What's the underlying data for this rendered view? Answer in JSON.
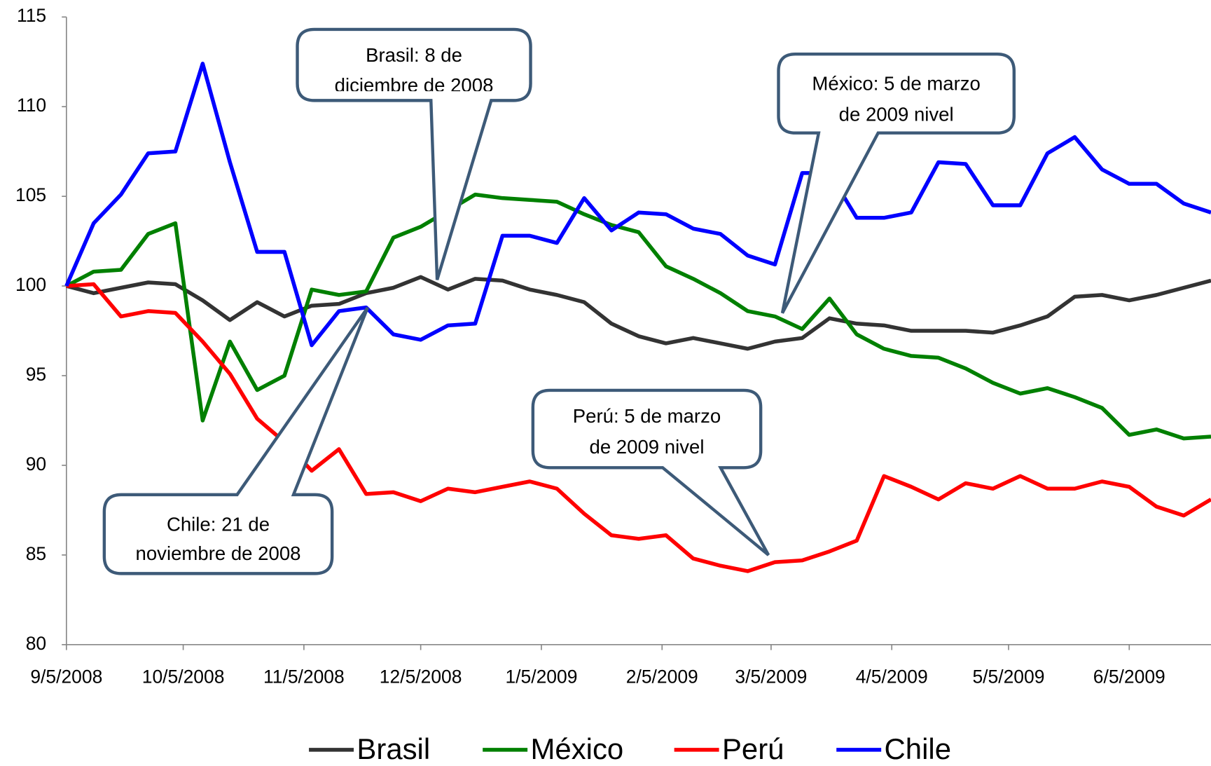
{
  "chart_data": {
    "type": "line",
    "x": [
      "2008-09-05",
      "2008-09-12",
      "2008-09-19",
      "2008-09-26",
      "2008-10-03",
      "2008-10-10",
      "2008-10-17",
      "2008-10-24",
      "2008-10-31",
      "2008-11-07",
      "2008-11-14",
      "2008-11-21",
      "2008-11-28",
      "2008-12-05",
      "2008-12-12",
      "2008-12-19",
      "2008-12-26",
      "2009-01-02",
      "2009-01-09",
      "2009-01-16",
      "2009-01-23",
      "2009-01-30",
      "2009-02-06",
      "2009-02-13",
      "2009-02-20",
      "2009-02-27",
      "2009-03-06",
      "2009-03-13",
      "2009-03-20",
      "2009-03-27",
      "2009-04-03",
      "2009-04-10",
      "2009-04-17",
      "2009-04-24",
      "2009-05-01",
      "2009-05-08",
      "2009-05-15",
      "2009-05-22",
      "2009-05-29",
      "2009-06-05",
      "2009-06-12",
      "2009-06-19",
      "2009-06-26"
    ],
    "series": [
      {
        "name": "Brasil",
        "color": "#333333",
        "values": [
          100,
          99.6,
          99.9,
          100.2,
          100.1,
          99.2,
          98.1,
          99.1,
          98.3,
          98.9,
          99.0,
          99.6,
          99.9,
          100.5,
          99.8,
          100.4,
          100.3,
          99.8,
          99.5,
          99.1,
          97.9,
          97.2,
          96.8,
          97.1,
          96.8,
          96.5,
          96.9,
          97.1,
          98.2,
          97.9,
          97.8,
          97.5,
          97.5,
          97.5,
          97.4,
          97.8,
          98.3,
          99.4,
          99.5,
          99.2,
          99.5,
          99.9,
          100.3
        ]
      },
      {
        "name": "México",
        "color": "#008000",
        "values": [
          100,
          100.8,
          100.9,
          102.9,
          103.5,
          92.5,
          96.9,
          94.2,
          95.0,
          99.8,
          99.5,
          99.7,
          102.7,
          103.3,
          104.2,
          105.1,
          104.9,
          104.8,
          104.7,
          104.0,
          103.4,
          103.0,
          101.1,
          100.4,
          99.6,
          98.6,
          98.3,
          97.6,
          99.3,
          97.3,
          96.5,
          96.1,
          96.0,
          95.4,
          94.6,
          94.0,
          94.3,
          93.8,
          93.2,
          91.7,
          92.0,
          91.5,
          91.6
        ]
      },
      {
        "name": "Perú",
        "color": "#ff0000",
        "values": [
          100,
          100.1,
          98.3,
          98.6,
          98.5,
          96.9,
          95.1,
          92.6,
          91.3,
          89.7,
          90.9,
          88.4,
          88.5,
          88.0,
          88.7,
          88.5,
          88.8,
          89.1,
          88.7,
          87.3,
          86.1,
          85.9,
          86.1,
          84.8,
          84.4,
          84.1,
          84.6,
          84.7,
          85.2,
          85.8,
          89.4,
          88.8,
          88.1,
          89.0,
          88.7,
          89.4,
          88.7,
          88.7,
          89.1,
          88.8,
          87.7,
          87.2,
          88.1
        ]
      },
      {
        "name": "Chile",
        "color": "#0000ff",
        "values": [
          100,
          103.5,
          105.1,
          107.4,
          107.5,
          112.4,
          106.9,
          101.9,
          101.9,
          96.7,
          98.6,
          98.8,
          97.3,
          97.0,
          97.8,
          97.9,
          102.8,
          102.8,
          102.4,
          104.9,
          103.1,
          104.1,
          104.0,
          103.2,
          102.9,
          101.7,
          101.2,
          106.3,
          106.3,
          103.8,
          103.8,
          104.1,
          106.9,
          106.8,
          104.5,
          104.5,
          107.4,
          108.3,
          106.5,
          105.7,
          105.7,
          104.6,
          104.1
        ]
      }
    ],
    "xlim": [
      "2008-09-05",
      "2009-06-26"
    ],
    "xticks": [
      {
        "value": "2008-09-05",
        "label": "9/5/2008"
      },
      {
        "value": "2008-10-05",
        "label": "10/5/2008"
      },
      {
        "value": "2008-11-05",
        "label": "11/5/2008"
      },
      {
        "value": "2008-12-05",
        "label": "12/5/2008"
      },
      {
        "value": "2009-01-05",
        "label": "1/5/2009"
      },
      {
        "value": "2009-02-05",
        "label": "2/5/2009"
      },
      {
        "value": "2009-03-05",
        "label": "3/5/2009"
      },
      {
        "value": "2009-04-05",
        "label": "4/5/2009"
      },
      {
        "value": "2009-05-05",
        "label": "5/5/2009"
      },
      {
        "value": "2009-06-05",
        "label": "6/5/2009"
      }
    ],
    "ylim": [
      80,
      115
    ],
    "yticks": [
      80,
      85,
      90,
      95,
      100,
      105,
      110,
      115
    ],
    "grid": false,
    "legend": "bottom",
    "annotations": [
      {
        "lines": [
          "Brasil: 8 de",
          "diciembre de 2008"
        ]
      },
      {
        "lines": [
          "México: 5 de marzo",
          "de 2009 nivel"
        ]
      },
      {
        "lines": [
          "Perú: 5 de marzo",
          "de 2009 nivel"
        ]
      },
      {
        "lines": [
          "Chile: 21 de",
          "noviembre de 2008"
        ]
      }
    ]
  }
}
